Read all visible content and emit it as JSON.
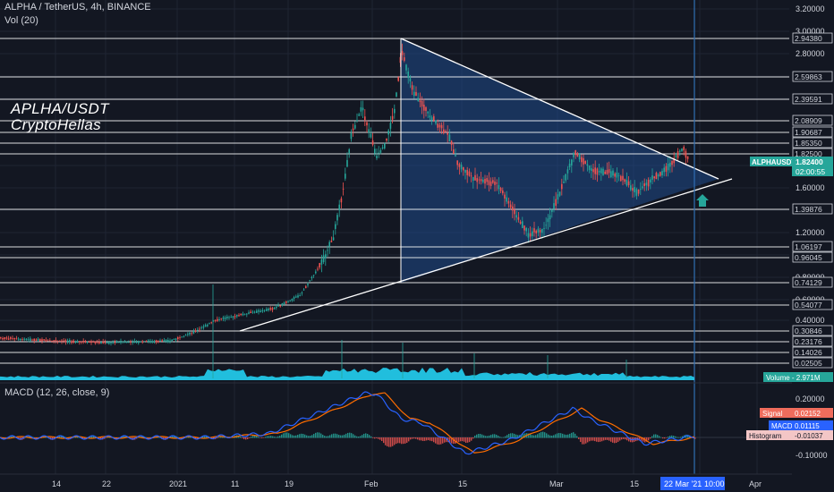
{
  "header": {
    "symbol_line": "ALPHA / TetherUS, 4h, BINANCE",
    "volume_label": "Vol (20)",
    "macd_label": "MACD (12, 26, close, 9)"
  },
  "watermark": {
    "line1": "APLHA/USDT",
    "line2": "CryptoHellas"
  },
  "colors": {
    "background": "#131722",
    "grid": "#1f2433",
    "up": "#26a69a",
    "down": "#ef5350",
    "triangle_fill": "#1f4b8a",
    "white_line": "#ffffff",
    "cyan_volume": "#22c7e8",
    "vertical_line": "#2f6fb3",
    "arrow": "#26a69a",
    "macd_line": "#2962ff",
    "signal_line": "#ff6d00"
  },
  "price_axis": {
    "ticks": [
      "3.20000",
      "3.00000",
      "2.80000",
      "1.60000",
      "1.20000",
      "0.80000",
      "0.60000",
      "0.40000"
    ],
    "hlines": [
      "2.94380",
      "2.59863",
      "2.39591",
      "2.08909",
      "1.90687",
      "1.85350",
      "1.82500",
      "1.39876",
      "1.06197",
      "0.96045",
      "0.74129",
      "0.54077",
      "0.30846",
      "0.23176",
      "0.14026",
      "0.02505"
    ],
    "current_symbol": "ALPHAUSDT",
    "current_price": "1.82400",
    "countdown": "02:00:55",
    "volume_tag": "Volume - 2.971M"
  },
  "macd_axis": {
    "ticks": [
      "0.20000",
      "-0.10000"
    ],
    "signal_label": "Signal",
    "signal_value": "0.02152",
    "macd_label": "MACD",
    "macd_value": "0.01115",
    "histogram_label": "Histogram",
    "histogram_value": "-0.01037"
  },
  "time_axis": {
    "ticks": [
      "14",
      "22",
      "2021",
      "11",
      "19",
      "Feb",
      "15",
      "Mar",
      "15",
      "Apr"
    ],
    "current_date": "22 Mar '21",
    "current_time": "10:00"
  },
  "chart_data": {
    "type": "candlestick",
    "title": "ALPHA / TetherUS, 4h, BINANCE",
    "x_range": [
      "Dec '20",
      "Apr '21"
    ],
    "y_range": [
      0.0,
      3.2
    ],
    "grid": true,
    "series": [
      {
        "name": "MACD",
        "panel": "macd"
      },
      {
        "name": "Signal",
        "panel": "macd"
      },
      {
        "name": "Histogram",
        "panel": "macd"
      }
    ],
    "price_path_points": [
      [
        "Dec 5",
        0.28
      ],
      [
        "Dec 14",
        0.26
      ],
      [
        "Dec 22",
        0.25
      ],
      [
        "Jan 1",
        0.27
      ],
      [
        "Jan 7",
        0.45
      ],
      [
        "Jan 11",
        0.45
      ],
      [
        "Jan 19",
        0.5
      ],
      [
        "Jan 23",
        0.8
      ],
      [
        "Jan 26",
        1.6
      ],
      [
        "Jan 28",
        2.3
      ],
      [
        "Jan 31",
        2.0
      ],
      [
        "Feb 3",
        2.3
      ],
      [
        "Feb 5",
        2.94
      ],
      [
        "Feb 10",
        2.35
      ],
      [
        "Feb 15",
        1.8
      ],
      [
        "Feb 20",
        1.55
      ],
      [
        "Feb 25",
        1.1
      ],
      [
        "Mar 1",
        1.55
      ],
      [
        "Mar 3",
        1.95
      ],
      [
        "Mar 8",
        1.75
      ],
      [
        "Mar 13",
        1.55
      ],
      [
        "Mar 17",
        1.7
      ],
      [
        "Mar 20",
        1.95
      ],
      [
        "Mar 22",
        1.824
      ]
    ],
    "triangle": {
      "apex_top": [
        "Feb 5",
        2.94
      ],
      "apex_bottom": [
        "Feb 5",
        0.74
      ],
      "tip": [
        "Mar 30",
        1.68
      ]
    }
  }
}
